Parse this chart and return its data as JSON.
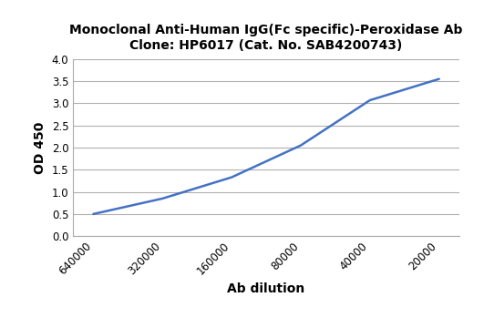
{
  "title_line1": "Monoclonal Anti-Human IgG(Fc specific)-Peroxidase Ab",
  "title_line2": "Clone: HP6017 (Cat. No. SAB4200743)",
  "xlabel": "Ab dilution",
  "ylabel": "OD 450",
  "x_positions": [
    0,
    1,
    2,
    3,
    4,
    5
  ],
  "y_values": [
    0.5,
    0.85,
    1.33,
    2.05,
    3.07,
    3.55
  ],
  "x_tick_labels": [
    "640000",
    "320000",
    "160000",
    "80000",
    "40000",
    "20000"
  ],
  "ylim": [
    0.0,
    4.0
  ],
  "yticks": [
    0.0,
    0.5,
    1.0,
    1.5,
    2.0,
    2.5,
    3.0,
    3.5,
    4.0
  ],
  "line_color": "#4472C4",
  "background_color": "#ffffff",
  "grid_color": "#b0b0b0",
  "title_fontsize": 10,
  "label_fontsize": 10,
  "tick_fontsize": 8.5,
  "line_width": 1.8
}
